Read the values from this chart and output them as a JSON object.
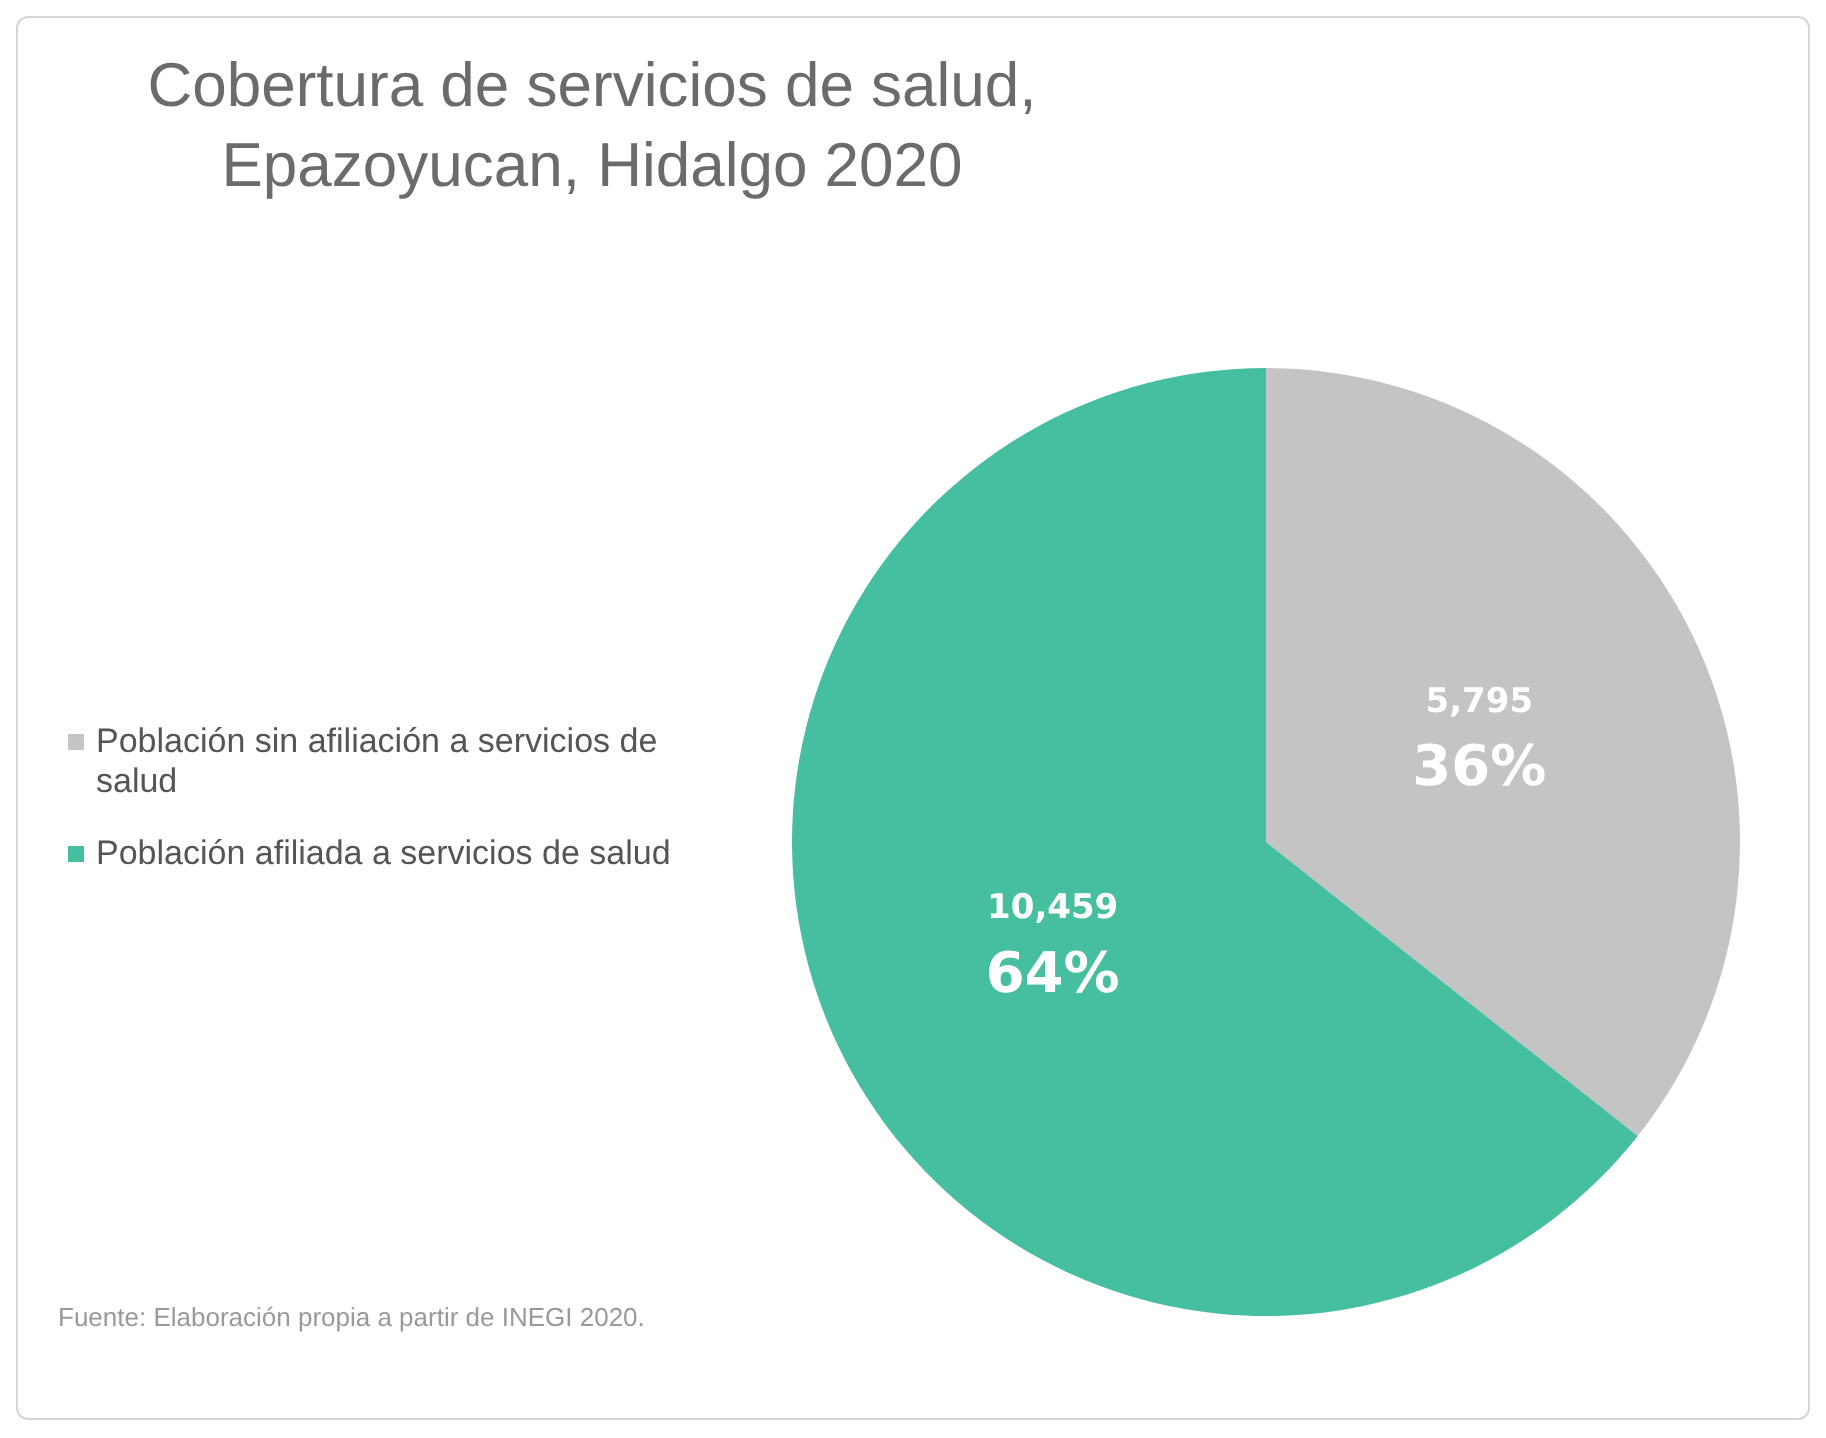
{
  "chart_data": {
    "type": "pie",
    "title": "Cobertura de servicios de salud, Epazoyucan, Hidalgo 2020",
    "categories": [
      "Población sin afiliación a servicios de salud",
      "Población afiliada a servicios de salud"
    ],
    "values": [
      5795,
      10459
    ],
    "colors": [
      "#c4c4c4",
      "#45bfa0"
    ],
    "value_labels": [
      "5,795\n36%",
      "10,459\n64%"
    ],
    "legend": "left",
    "annotations": [
      "Fuente: Elaboración propia a partir de INEGI 2020."
    ]
  }
}
